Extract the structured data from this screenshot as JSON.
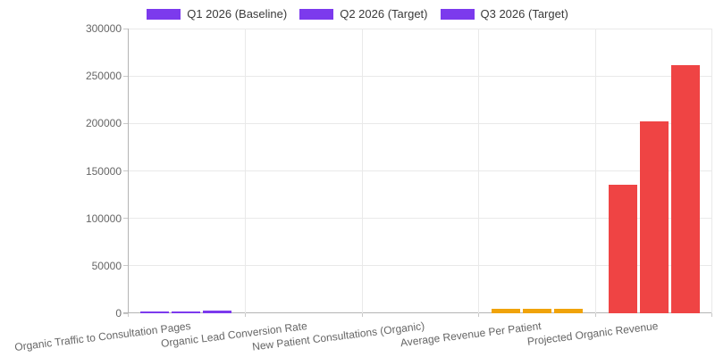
{
  "chart_data": {
    "type": "bar",
    "title": "",
    "xlabel": "",
    "ylabel": "",
    "ylim": [
      0,
      300000
    ],
    "yticks": [
      0,
      50000,
      100000,
      150000,
      200000,
      250000,
      300000
    ],
    "grid": true,
    "legend_position": "top",
    "categories": [
      "Organic Traffic to Consultation Pages",
      "Organic Lead Conversion Rate",
      "New Patient Consultations (Organic)",
      "Average Revenue Per Patient",
      "Projected Organic Revenue"
    ],
    "series": [
      {
        "name": "Q1 2026 (Baseline)",
        "swatch_color": "#7c3aed",
        "values": [
          1500,
          2.5,
          30,
          4500,
          135000
        ]
      },
      {
        "name": "Q2 2026 (Target)",
        "swatch_color": "#7c3aed",
        "values": [
          2000,
          3.0,
          45,
          4500,
          202500
        ]
      },
      {
        "name": "Q3 2026 (Target)",
        "swatch_color": "#7c3aed",
        "values": [
          2500,
          3.5,
          58,
          4500,
          261000
        ]
      }
    ],
    "category_colors": [
      "#7c3aed",
      "#7c3aed",
      "#7c3aed",
      "#f0a30a",
      "#ef4444"
    ]
  },
  "colors": {
    "grid": "#e9e9e9",
    "axis": "#b4b4b4",
    "tick_mark": "#c9c9c9",
    "tick_text": "#666666",
    "legend_text": "#3a3a3a",
    "background": "#ffffff"
  }
}
